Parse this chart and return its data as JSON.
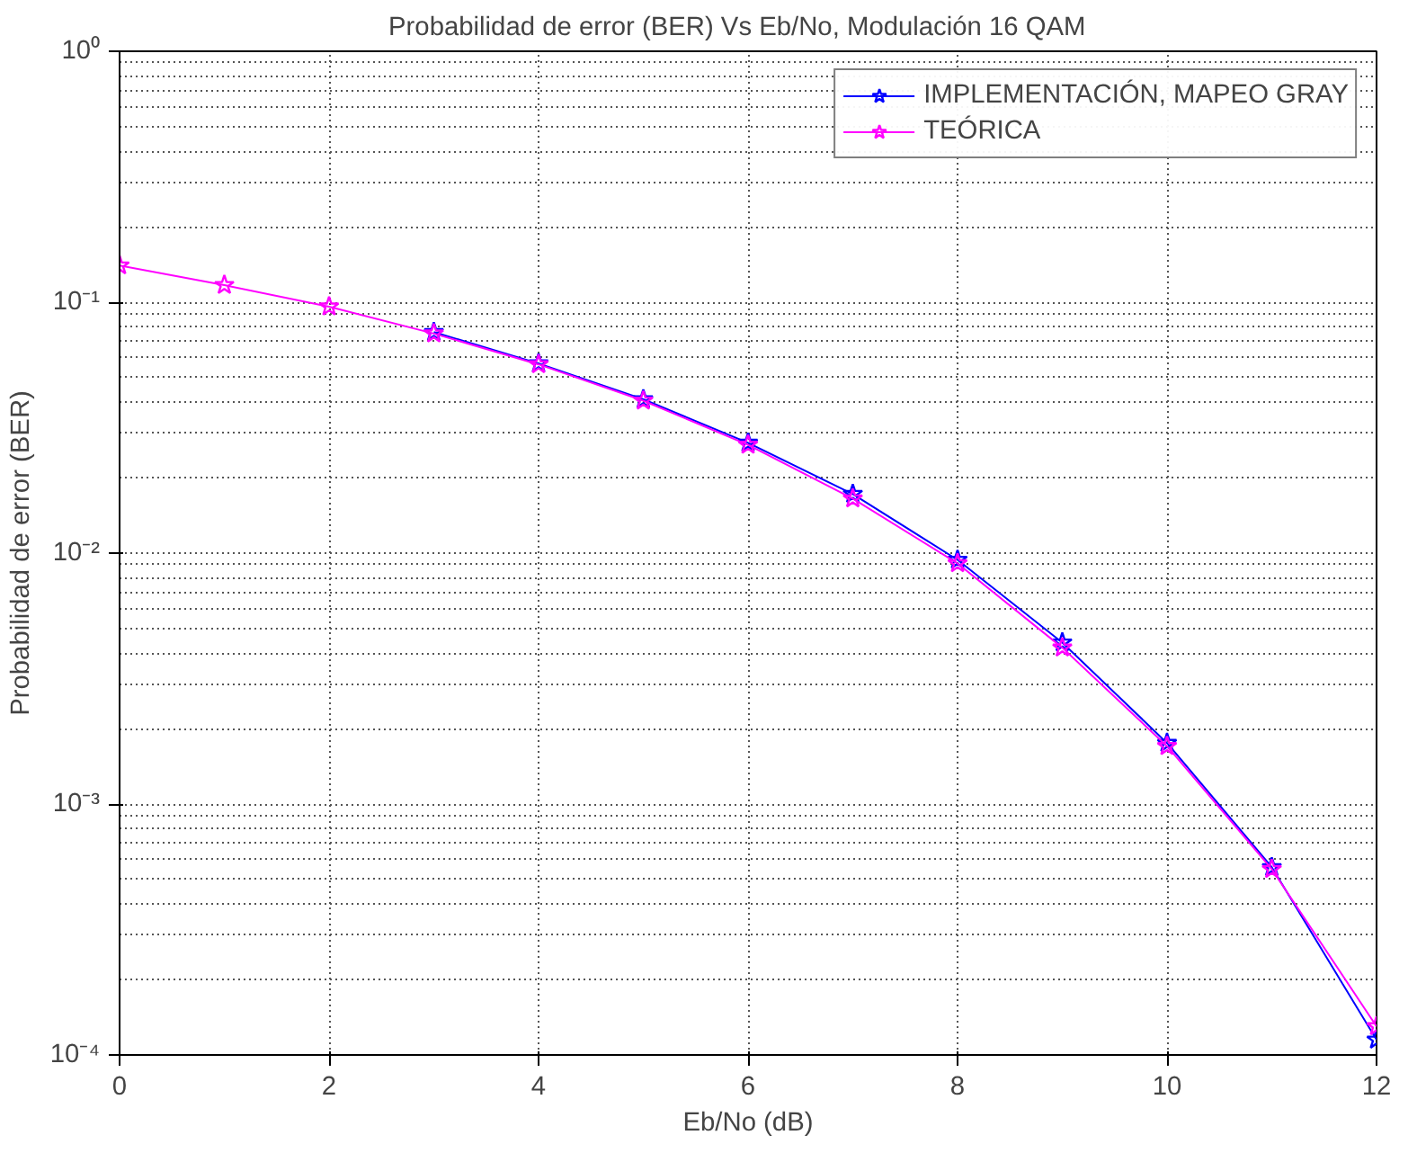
{
  "chart_data": {
    "type": "line",
    "title": "Probabilidad de error (BER)  Vs  Eb/No,  Modulación 16 QAM",
    "xlabel": "Eb/No (dB)",
    "ylabel": "Probabilidad de error (BER)",
    "x": [
      0,
      1,
      2,
      3,
      4,
      5,
      6,
      7,
      8,
      9,
      10,
      11,
      12
    ],
    "series": [
      {
        "name": "IMPLEMENTACIÓN, MAPEO GRAY",
        "color": "#0000ff",
        "values": [
          null,
          null,
          null,
          0.076,
          0.057,
          0.041,
          0.0275,
          0.0172,
          0.0094,
          0.0044,
          0.00175,
          0.00056,
          0.000115
        ]
      },
      {
        "name": "TEÓRICA",
        "color": "#ff00ff",
        "values": [
          0.14,
          0.117,
          0.096,
          0.075,
          0.0565,
          0.0405,
          0.027,
          0.0165,
          0.0091,
          0.0042,
          0.0017,
          0.00055,
          0.00013
        ]
      }
    ],
    "xlim": [
      0,
      12
    ],
    "xticks": [
      0,
      2,
      4,
      6,
      8,
      10,
      12
    ],
    "ylim": [
      0.0001,
      1
    ],
    "yticks": [
      {
        "value": 0.0001,
        "label": "10⁻⁴"
      },
      {
        "value": 0.001,
        "label": "10⁻³"
      },
      {
        "value": 0.01,
        "label": "10⁻²"
      },
      {
        "value": 0.1,
        "label": "10⁻¹"
      },
      {
        "value": 1,
        "label": "10⁰"
      }
    ],
    "log": "y",
    "grid": true,
    "legend": "top right",
    "marker": "star",
    "line_style": "solid"
  }
}
